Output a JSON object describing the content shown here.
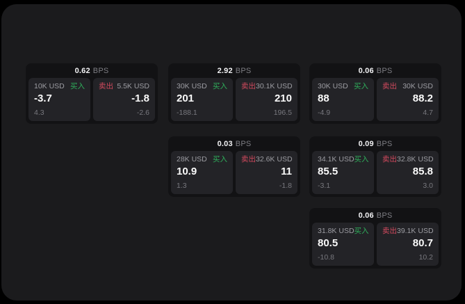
{
  "unit_label": "BPS",
  "labels": {
    "buy": "买入",
    "sell": "卖出"
  },
  "colors": {
    "background": "#000000",
    "container": "#1b1b1d",
    "card": "#121214",
    "panel": "#232327",
    "buy_accent": "#2fae5b",
    "sell_accent": "#d34a5e",
    "primary_text": "#fafafa",
    "muted_text": "#9c9ca2",
    "faint_text": "#78787e"
  },
  "cards": [
    {
      "bps": "0.62",
      "buy": {
        "amount": "10K USD",
        "value": "-3.7",
        "sub": "4.3"
      },
      "sell": {
        "amount": "5.5K USD",
        "value": "-1.8",
        "sub": "-2.6"
      }
    },
    {
      "bps": "2.92",
      "buy": {
        "amount": "30K USD",
        "value": "201",
        "sub": "-188.1"
      },
      "sell": {
        "amount": "30.1K USD",
        "value": "210",
        "sub": "196.5"
      }
    },
    {
      "bps": "0.06",
      "buy": {
        "amount": "30K USD",
        "value": "88",
        "sub": "-4.9"
      },
      "sell": {
        "amount": "30K USD",
        "value": "88.2",
        "sub": "4.7"
      }
    },
    {
      "bps": "0.03",
      "buy": {
        "amount": "28K USD",
        "value": "10.9",
        "sub": "1.3"
      },
      "sell": {
        "amount": "32.6K USD",
        "value": "11",
        "sub": "-1.8"
      }
    },
    {
      "bps": "0.09",
      "buy": {
        "amount": "34.1K USD",
        "value": "85.5",
        "sub": "-3.1"
      },
      "sell": {
        "amount": "32.8K USD",
        "value": "85.8",
        "sub": "3.0"
      }
    },
    {
      "bps": "0.06",
      "buy": {
        "amount": "31.8K USD",
        "value": "80.5",
        "sub": "-10.8"
      },
      "sell": {
        "amount": "39.1K USD",
        "value": "80.7",
        "sub": "10.2"
      }
    }
  ]
}
